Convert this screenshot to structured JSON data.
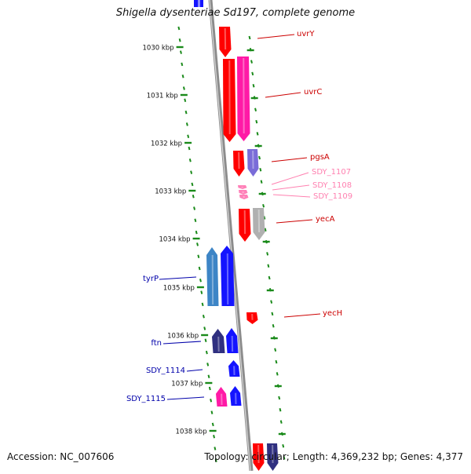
{
  "title": "Shigella dysenteriae Sd197, complete genome",
  "accession": "Accession: NC_007606",
  "summary": "Topology: circular; Length: 4,369,232 bp; Genes: 4,377",
  "colors": {
    "red": "#ff0000",
    "magenta": "#ff1aa6",
    "blue": "#1414ff",
    "steel": "#3d85c6",
    "navy": "#303080",
    "purple": "#7a6cd8",
    "gray": "#b0b0b0",
    "pink": "#ff80b8",
    "tick": "#1a8a1a",
    "backbone": "#8c8c8c"
  },
  "ticks": [
    "1030 kbp",
    "1031 kbp",
    "1032 kbp",
    "1033 kbp",
    "1034 kbp",
    "1035 kbp",
    "1036 kbp",
    "1037 kbp",
    "1038 kbp"
  ],
  "genes": [
    {
      "name": "uvrY",
      "strand": "+",
      "color": "red",
      "label_color": "#cc0000"
    },
    {
      "name": "uvrC",
      "strand": "+",
      "color": "red",
      "label_color": "#cc0000"
    },
    {
      "name": "",
      "strand": "+",
      "color": "magenta"
    },
    {
      "name": "pgsA",
      "strand": "+",
      "color": "red",
      "label_color": "#cc0000"
    },
    {
      "name": "",
      "strand": "+",
      "color": "purple"
    },
    {
      "name": "SDY_1107",
      "strand": "+",
      "color": "pink",
      "label_color": "#ff80b0"
    },
    {
      "name": "SDY_1108",
      "strand": "+",
      "color": "pink",
      "label_color": "#ff80b0"
    },
    {
      "name": "SDY_1109",
      "strand": "+",
      "color": "pink",
      "label_color": "#ff80b0"
    },
    {
      "name": "yecA",
      "strand": "+",
      "color": "red",
      "label_color": "#cc0000"
    },
    {
      "name": "",
      "strand": "+",
      "color": "gray"
    },
    {
      "name": "tyrP",
      "strand": "-",
      "color": "blue",
      "label_color": "#0000aa"
    },
    {
      "name": "",
      "strand": "-",
      "color": "steel"
    },
    {
      "name": "yecH",
      "strand": "+",
      "color": "red",
      "label_color": "#cc0000"
    },
    {
      "name": "ftn",
      "strand": "-",
      "color": "blue",
      "label_color": "#0000aa"
    },
    {
      "name": "",
      "strand": "-",
      "color": "navy"
    },
    {
      "name": "SDY_1114",
      "strand": "-",
      "color": "blue",
      "label_color": "#0000aa"
    },
    {
      "name": "SDY_1115",
      "strand": "-",
      "color": "blue",
      "label_color": "#0000aa"
    },
    {
      "name": "",
      "strand": "-",
      "color": "magenta"
    },
    {
      "name": "",
      "strand": "-",
      "color": "blue"
    },
    {
      "name": "",
      "strand": "+",
      "color": "red"
    },
    {
      "name": "",
      "strand": "+",
      "color": "navy"
    }
  ]
}
